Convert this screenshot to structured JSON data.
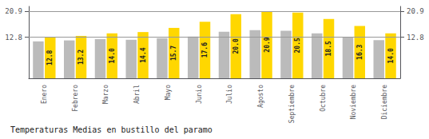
{
  "chart_data": {
    "type": "bar",
    "title": "Temperaturas Medias en bustillo del paramo",
    "categories": [
      "Enero",
      "Febrero",
      "Marzo",
      "Abril",
      "Mayo",
      "Junio",
      "Julio",
      "Agosto",
      "Septiembre",
      "Octubre",
      "Noviembre",
      "Diciembre"
    ],
    "series": [
      {
        "color": "#BBBBBB",
        "values": [
          11.5,
          11.8,
          12.2,
          12.0,
          12.5,
          13.0,
          14.5,
          15.0,
          14.8,
          14.0,
          12.8,
          11.9
        ]
      },
      {
        "color": "#FFD700",
        "values": [
          12.8,
          13.2,
          14.0,
          14.4,
          15.7,
          17.6,
          20.0,
          20.9,
          20.5,
          18.5,
          16.3,
          14.0
        ],
        "value_labels": [
          "12.8",
          "13.2",
          "14.0",
          "14.4",
          "15.7",
          "17.6",
          "20.0",
          "20.9",
          "20.5",
          "18.5",
          "16.3",
          "14.0"
        ],
        "data_labels": true
      }
    ],
    "ylim": [
      0,
      22.4
    ],
    "yticks": [
      12.8,
      20.9
    ],
    "y2lim": [
      0,
      22.4
    ],
    "y2ticks": [
      12.8,
      20.9
    ],
    "grid": true
  }
}
